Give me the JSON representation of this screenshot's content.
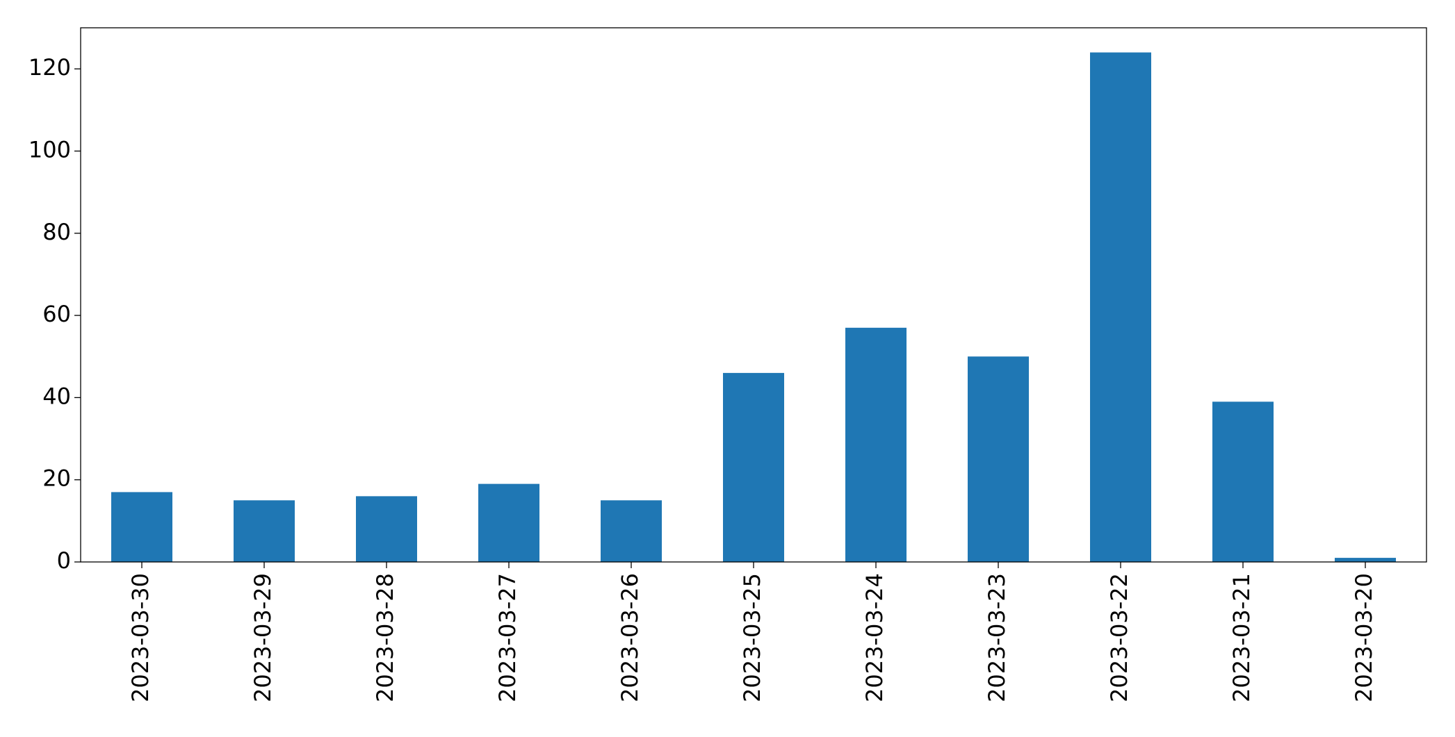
{
  "chart_data": {
    "type": "bar",
    "categories": [
      "2023-03-30",
      "2023-03-29",
      "2023-03-28",
      "2023-03-27",
      "2023-03-26",
      "2023-03-25",
      "2023-03-24",
      "2023-03-23",
      "2023-03-22",
      "2023-03-21",
      "2023-03-20"
    ],
    "values": [
      17,
      15,
      16,
      19,
      15,
      46,
      57,
      50,
      124,
      39,
      1
    ],
    "color": "#1f77b4",
    "ylim": [
      0,
      130
    ],
    "yticks": [
      0,
      20,
      40,
      60,
      80,
      100,
      120
    ],
    "grid": false
  }
}
